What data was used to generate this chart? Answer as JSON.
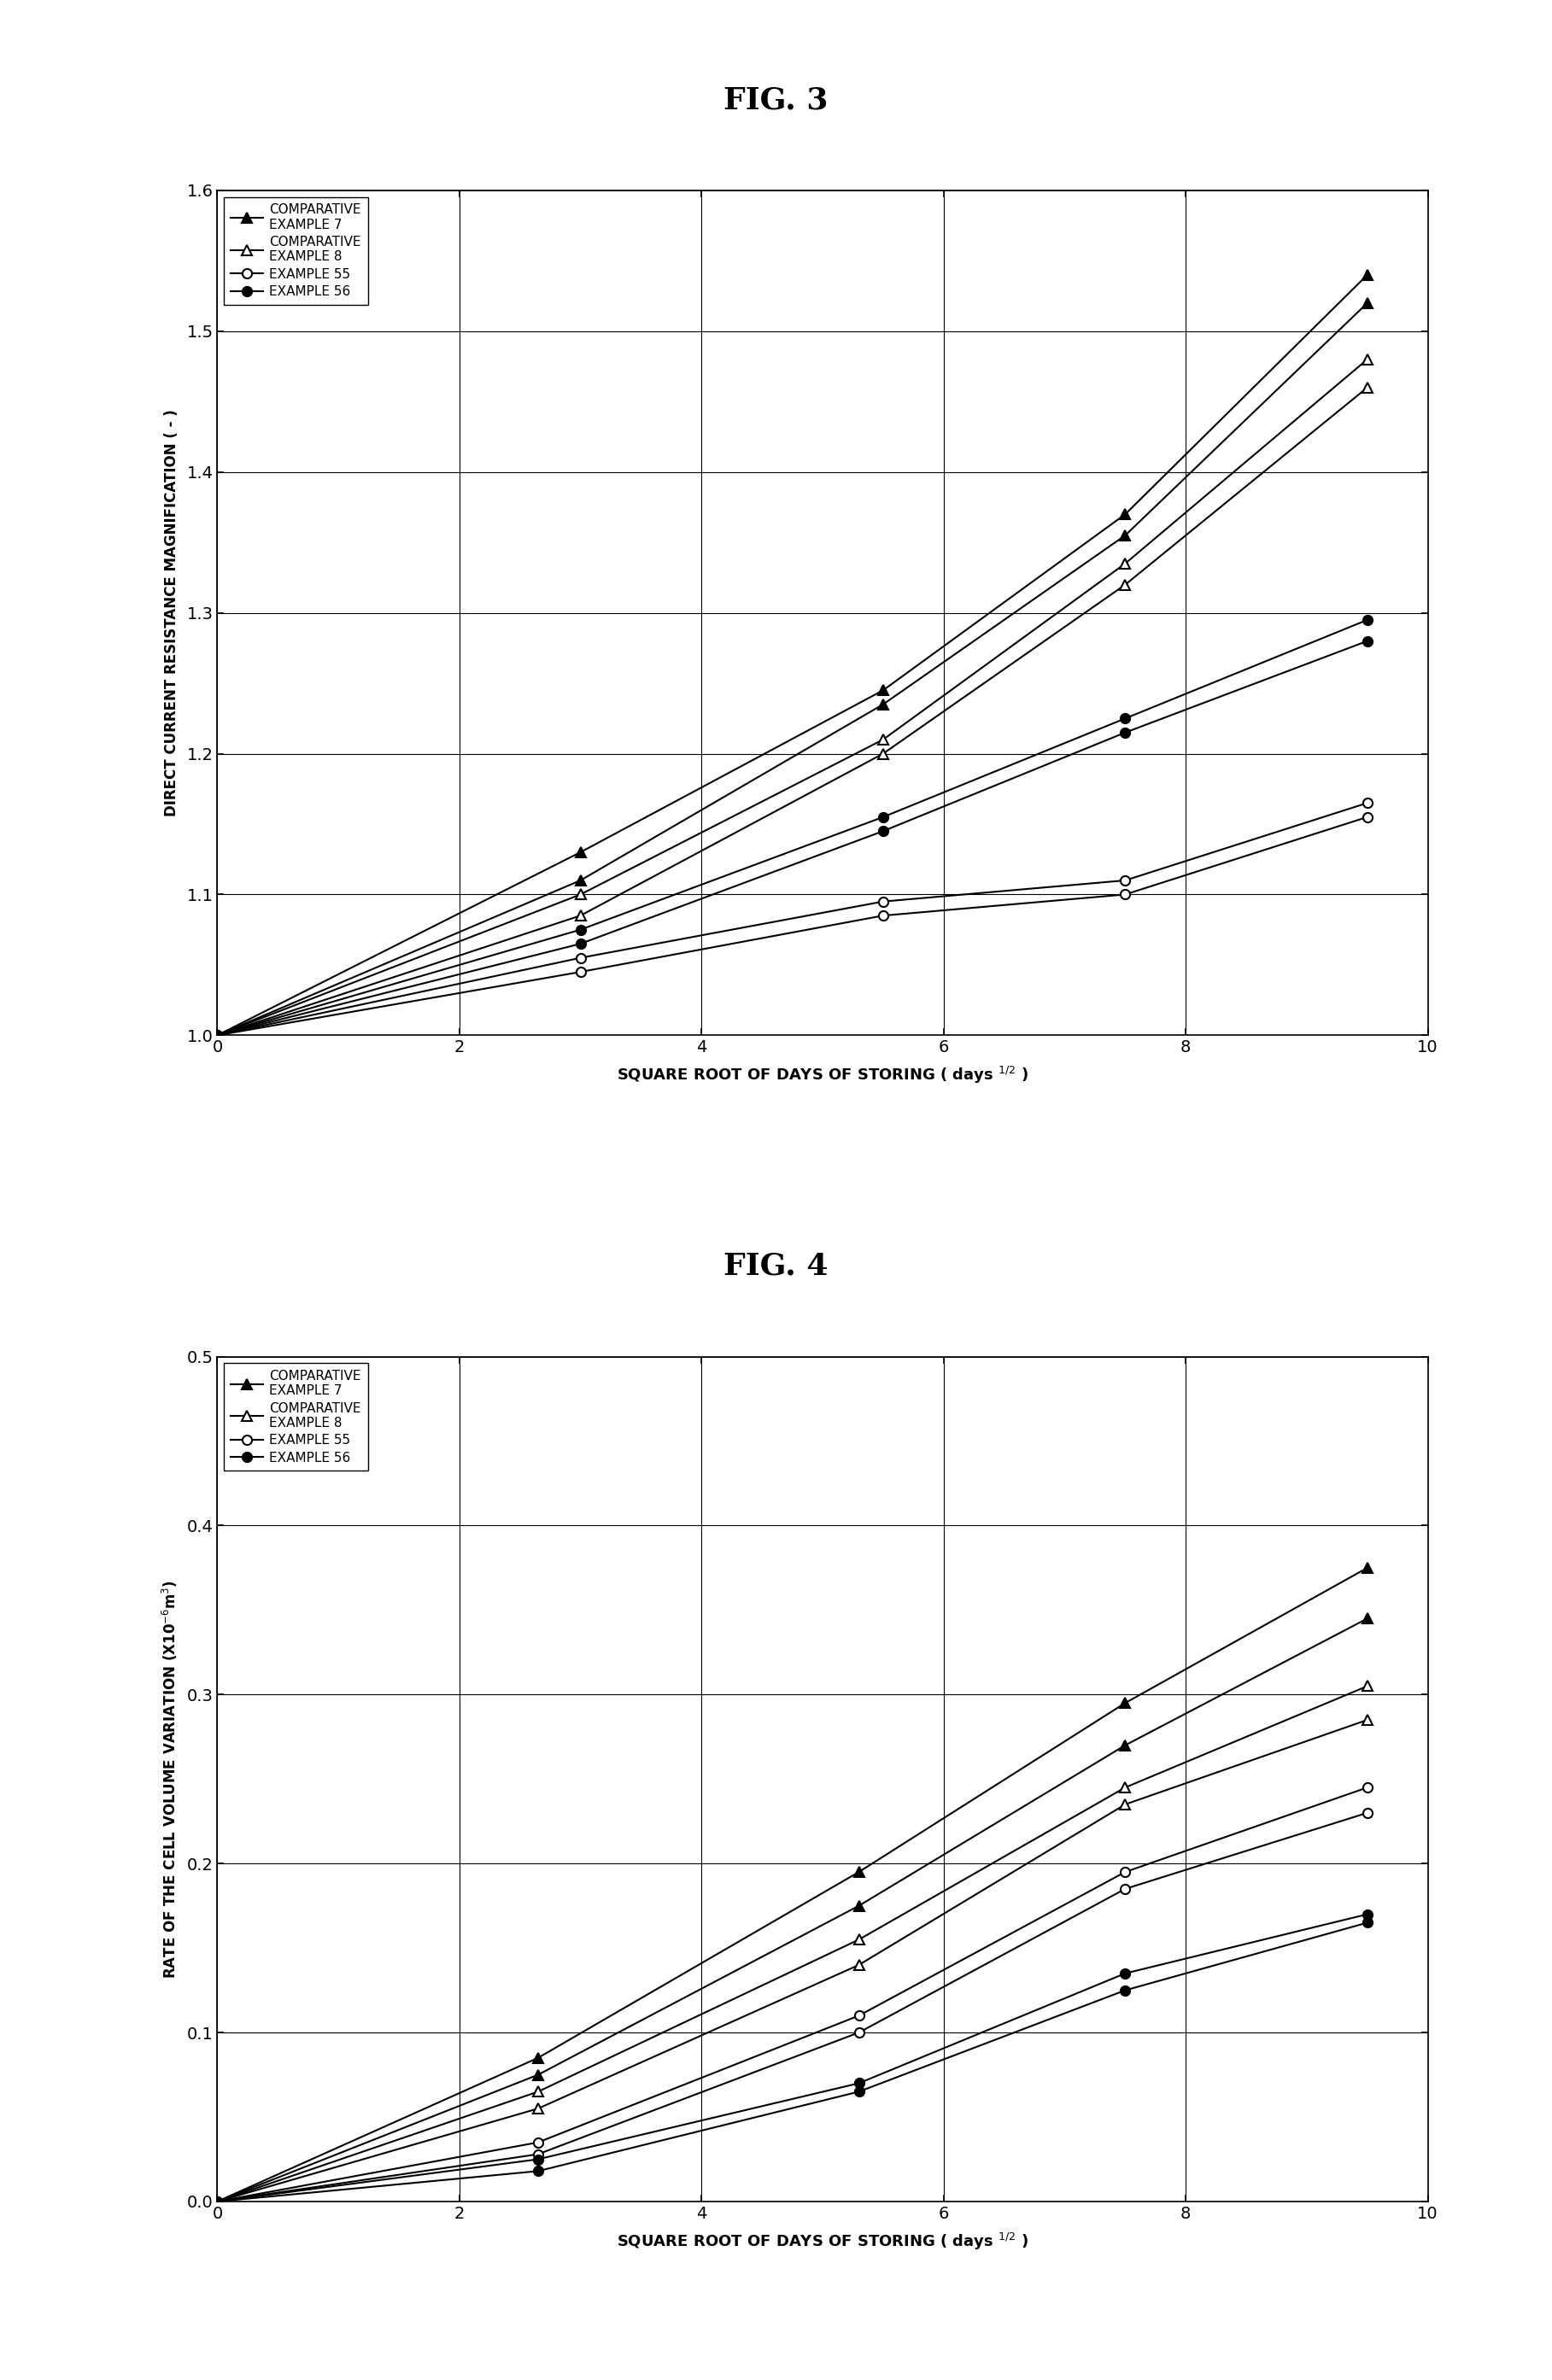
{
  "fig3": {
    "title": "FIG. 3",
    "xlabel": "SQUARE ROOT OF DAYS OF STORING ( days",
    "ylabel": "DIRECT CURRENT RESISTANCE MAGNIFICATION ( - )",
    "xlim": [
      0,
      10
    ],
    "ylim": [
      1.0,
      1.6
    ],
    "xticks": [
      0,
      2,
      4,
      6,
      8,
      10
    ],
    "yticks": [
      1.0,
      1.1,
      1.2,
      1.3,
      1.4,
      1.5,
      1.6
    ],
    "series": [
      {
        "x": [
          0,
          3.0,
          5.5,
          7.5,
          9.5
        ],
        "y": [
          1.0,
          1.13,
          1.245,
          1.37,
          1.54
        ],
        "marker": "^",
        "filled": true
      },
      {
        "x": [
          0,
          3.0,
          5.5,
          7.5,
          9.5
        ],
        "y": [
          1.0,
          1.11,
          1.235,
          1.355,
          1.52
        ],
        "marker": "^",
        "filled": true
      },
      {
        "x": [
          0,
          3.0,
          5.5,
          7.5,
          9.5
        ],
        "y": [
          1.0,
          1.1,
          1.21,
          1.335,
          1.48
        ],
        "marker": "^",
        "filled": false
      },
      {
        "x": [
          0,
          3.0,
          5.5,
          7.5,
          9.5
        ],
        "y": [
          1.0,
          1.085,
          1.2,
          1.32,
          1.46
        ],
        "marker": "^",
        "filled": false
      },
      {
        "x": [
          0,
          3.0,
          5.5,
          7.5,
          9.5
        ],
        "y": [
          1.0,
          1.055,
          1.095,
          1.11,
          1.165
        ],
        "marker": "o",
        "filled": false
      },
      {
        "x": [
          0,
          3.0,
          5.5,
          7.5,
          9.5
        ],
        "y": [
          1.0,
          1.045,
          1.085,
          1.1,
          1.155
        ],
        "marker": "o",
        "filled": false
      },
      {
        "x": [
          0,
          3.0,
          5.5,
          7.5,
          9.5
        ],
        "y": [
          1.0,
          1.075,
          1.155,
          1.225,
          1.295
        ],
        "marker": "o",
        "filled": true
      },
      {
        "x": [
          0,
          3.0,
          5.5,
          7.5,
          9.5
        ],
        "y": [
          1.0,
          1.065,
          1.145,
          1.215,
          1.28
        ],
        "marker": "o",
        "filled": true
      }
    ],
    "legend_series": [
      {
        "label_line1": "COMPARATIVE",
        "label_line2": "EXAMPLE 7",
        "marker": "^",
        "filled": true
      },
      {
        "label_line1": "COMPARATIVE",
        "label_line2": "EXAMPLE 8",
        "marker": "^",
        "filled": false
      },
      {
        "label_line1": "EXAMPLE 55",
        "label_line2": "",
        "marker": "o",
        "filled": false
      },
      {
        "label_line1": "EXAMPLE 56",
        "label_line2": "",
        "marker": "o",
        "filled": true
      }
    ]
  },
  "fig4": {
    "title": "FIG. 4",
    "xlabel": "SQUARE ROOT OF DAYS OF STORING ( days",
    "ylabel": "RATE OF THE CELL VOLUME VARIATION (X10$^{-6}$m$^{3}$)",
    "xlim": [
      0,
      10
    ],
    "ylim": [
      0.0,
      0.5
    ],
    "xticks": [
      0,
      2,
      4,
      6,
      8,
      10
    ],
    "yticks": [
      0.0,
      0.1,
      0.2,
      0.3,
      0.4,
      0.5
    ],
    "series": [
      {
        "x": [
          0,
          2.65,
          5.3,
          7.5,
          9.5
        ],
        "y": [
          0.0,
          0.085,
          0.195,
          0.295,
          0.375
        ],
        "marker": "^",
        "filled": true
      },
      {
        "x": [
          0,
          2.65,
          5.3,
          7.5,
          9.5
        ],
        "y": [
          0.0,
          0.075,
          0.175,
          0.27,
          0.345
        ],
        "marker": "^",
        "filled": true
      },
      {
        "x": [
          0,
          2.65,
          5.3,
          7.5,
          9.5
        ],
        "y": [
          0.0,
          0.065,
          0.155,
          0.245,
          0.305
        ],
        "marker": "^",
        "filled": false
      },
      {
        "x": [
          0,
          2.65,
          5.3,
          7.5,
          9.5
        ],
        "y": [
          0.0,
          0.055,
          0.14,
          0.235,
          0.285
        ],
        "marker": "^",
        "filled": false
      },
      {
        "x": [
          0,
          2.65,
          5.3,
          7.5,
          9.5
        ],
        "y": [
          0.0,
          0.035,
          0.11,
          0.195,
          0.245
        ],
        "marker": "o",
        "filled": false
      },
      {
        "x": [
          0,
          2.65,
          5.3,
          7.5,
          9.5
        ],
        "y": [
          0.0,
          0.028,
          0.1,
          0.185,
          0.23
        ],
        "marker": "o",
        "filled": false
      },
      {
        "x": [
          0,
          2.65,
          5.3,
          7.5,
          9.5
        ],
        "y": [
          0.0,
          0.025,
          0.07,
          0.135,
          0.17
        ],
        "marker": "o",
        "filled": true
      },
      {
        "x": [
          0,
          2.65,
          5.3,
          7.5,
          9.5
        ],
        "y": [
          0.0,
          0.018,
          0.065,
          0.125,
          0.165
        ],
        "marker": "o",
        "filled": true
      }
    ],
    "legend_series": [
      {
        "label_line1": "COMPARATIVE",
        "label_line2": "EXAMPLE 7",
        "marker": "^",
        "filled": true
      },
      {
        "label_line1": "COMPARATIVE",
        "label_line2": "EXAMPLE 8",
        "marker": "^",
        "filled": false
      },
      {
        "label_line1": "EXAMPLE 55",
        "label_line2": "",
        "marker": "o",
        "filled": false
      },
      {
        "label_line1": "EXAMPLE 56",
        "label_line2": "",
        "marker": "o",
        "filled": true
      }
    ]
  },
  "bg_color": "#ffffff",
  "line_color": "#000000",
  "title_fontsize": 26,
  "label_fontsize": 13,
  "tick_fontsize": 14,
  "legend_fontsize": 11,
  "linewidth": 1.5,
  "markersize_tri": 9,
  "markersize_circ": 8
}
